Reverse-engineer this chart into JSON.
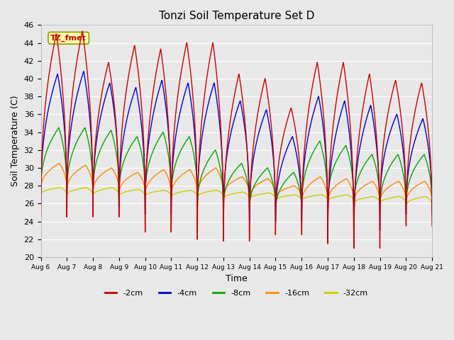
{
  "title": "Tonzi Soil Temperature Set D",
  "xlabel": "Time",
  "ylabel": "Soil Temperature (C)",
  "ylim": [
    20,
    46
  ],
  "x_tick_labels": [
    "Aug 6",
    "Aug 7",
    "Aug 8",
    "Aug 9",
    "Aug 10",
    "Aug 11",
    "Aug 12",
    "Aug 13",
    "Aug 14",
    "Aug 15",
    "Aug 16",
    "Aug 17",
    "Aug 18",
    "Aug 19",
    "Aug 20",
    "Aug 21"
  ],
  "legend_labels": [
    "-2cm",
    "-4cm",
    "-8cm",
    "-16cm",
    "-32cm"
  ],
  "line_colors": [
    "#cc0000",
    "#0000cc",
    "#00aa00",
    "#ff8800",
    "#cccc00"
  ],
  "annotation_text": "TZ_fmet",
  "annotation_color": "#cc0000",
  "annotation_bg": "#ffffaa",
  "plot_bg": "#e8e8e8",
  "fig_bg": "#e8e8e8",
  "n_days": 15,
  "pts_per_day": 144,
  "peaks_2cm": [
    45.0,
    45.3,
    41.8,
    43.7,
    43.3,
    44.0,
    44.0,
    40.5,
    40.0,
    36.7,
    41.8,
    41.8,
    40.5,
    39.8,
    39.5
  ],
  "troughs_2cm": [
    24.5,
    24.5,
    24.5,
    24.5,
    22.8,
    23.8,
    22.0,
    21.8,
    22.5,
    23.8,
    22.5,
    21.5,
    21.0,
    24.0,
    23.5
  ],
  "peaks_4cm": [
    40.5,
    40.8,
    39.5,
    39.0,
    39.8,
    39.5,
    39.5,
    37.5,
    36.5,
    33.5,
    38.0,
    37.5,
    37.0,
    36.0,
    35.5
  ],
  "troughs_4cm": [
    26.0,
    26.0,
    25.5,
    25.5,
    24.8,
    25.0,
    24.5,
    24.5,
    24.2,
    24.0,
    24.0,
    22.8,
    23.0,
    25.0,
    24.8
  ],
  "peaks_8cm": [
    34.5,
    34.5,
    34.2,
    33.5,
    34.0,
    33.5,
    32.0,
    30.5,
    30.0,
    29.5,
    33.0,
    32.5,
    31.5,
    31.5,
    31.5
  ],
  "troughs_8cm": [
    27.2,
    27.0,
    27.0,
    26.8,
    26.5,
    26.5,
    25.5,
    25.5,
    25.2,
    25.0,
    25.5,
    25.8,
    25.5,
    25.2,
    25.5
  ],
  "peaks_16cm": [
    30.5,
    30.3,
    30.0,
    29.5,
    29.8,
    29.8,
    30.0,
    29.0,
    28.8,
    28.0,
    29.0,
    28.8,
    28.5,
    28.5,
    28.5
  ],
  "troughs_16cm": [
    27.5,
    27.3,
    27.2,
    27.0,
    26.8,
    26.8,
    26.8,
    26.8,
    26.5,
    26.5,
    26.0,
    26.0,
    26.0,
    26.0,
    26.0
  ],
  "peaks_32cm": [
    27.8,
    27.8,
    27.8,
    27.6,
    27.5,
    27.5,
    27.5,
    27.3,
    27.2,
    27.0,
    27.0,
    27.0,
    26.8,
    26.8,
    26.8
  ],
  "troughs_32cm": [
    27.0,
    26.9,
    26.9,
    26.8,
    26.8,
    26.7,
    26.7,
    26.5,
    26.5,
    26.3,
    26.3,
    26.2,
    26.0,
    26.0,
    25.8
  ]
}
